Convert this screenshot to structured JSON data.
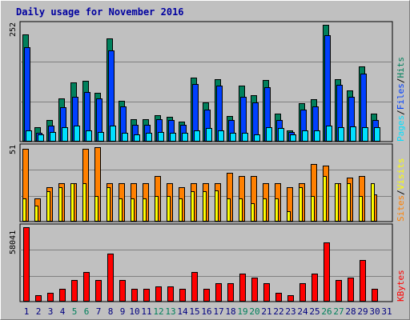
{
  "title": "Daily usage for November 2016",
  "colors": {
    "frame": "#c0c0c0",
    "panel": "#c0c0c0",
    "title": "#0000a0",
    "hits": "#00805c",
    "files": "#0040ff",
    "pages": "#00e0ff",
    "visits": "#ffff00",
    "sites": "#ff8000",
    "kbytes": "#ff0000",
    "weekend_label": "#00805c",
    "weekday_label": "#000080",
    "legend_sep": "#000000"
  },
  "chart_data": [
    {
      "type": "bar",
      "panel": "hits-files-pages",
      "ytick_label": "252",
      "legend": [
        "Pages",
        "/",
        "Files",
        "/",
        "Hits"
      ],
      "categories": [
        "1",
        "2",
        "3",
        "4",
        "5",
        "6",
        "7",
        "8",
        "9",
        "10",
        "11",
        "12",
        "13",
        "14",
        "15",
        "16",
        "17",
        "18",
        "19",
        "20",
        "21",
        "22",
        "23",
        "24",
        "25",
        "26",
        "27",
        "28",
        "29",
        "30",
        "31"
      ],
      "weekend_days": [
        "5",
        "6",
        "12",
        "13",
        "19",
        "20",
        "26",
        "27"
      ],
      "series": [
        {
          "name": "Hits",
          "values": [
            252,
            34,
            50,
            102,
            138,
            143,
            115,
            243,
            96,
            52,
            52,
            62,
            58,
            46,
            150,
            92,
            146,
            60,
            132,
            109,
            144,
            66,
            27,
            90,
            100,
            274,
            146,
            120,
            176,
            66,
            0
          ]
        },
        {
          "name": "Files",
          "values": [
            222,
            20,
            38,
            80,
            106,
            116,
            102,
            214,
            82,
            40,
            40,
            52,
            50,
            40,
            136,
            76,
            132,
            50,
            106,
            92,
            128,
            50,
            22,
            76,
            82,
            250,
            134,
            106,
            160,
            50,
            0
          ]
        },
        {
          "name": "Pages",
          "values": [
            27,
            16,
            23,
            34,
            38,
            27,
            23,
            38,
            20,
            16,
            20,
            23,
            20,
            20,
            27,
            31,
            27,
            20,
            20,
            16,
            34,
            31,
            16,
            27,
            27,
            38,
            34,
            36,
            34,
            34,
            0
          ]
        }
      ]
    },
    {
      "type": "bar",
      "panel": "visits-sites",
      "ytick_label": "51",
      "legend": [
        "Sites",
        "/",
        "Visits"
      ],
      "categories": [
        "1",
        "2",
        "3",
        "4",
        "5",
        "6",
        "7",
        "8",
        "9",
        "10",
        "11",
        "12",
        "13",
        "14",
        "15",
        "16",
        "17",
        "18",
        "19",
        "20",
        "21",
        "22",
        "23",
        "24",
        "25",
        "26",
        "27",
        "28",
        "29",
        "30",
        "31"
      ],
      "series": [
        {
          "name": "Visits",
          "values": [
            16,
            11,
            21,
            24,
            27,
            27,
            18,
            24,
            16,
            16,
            16,
            18,
            18,
            16,
            21,
            21,
            22,
            16,
            16,
            13,
            16,
            16,
            7,
            24,
            18,
            32,
            27,
            27,
            18,
            27,
            0
          ]
        },
        {
          "name": "Sites",
          "values": [
            51,
            16,
            24,
            27,
            27,
            51,
            52,
            27,
            27,
            27,
            27,
            32,
            27,
            24,
            27,
            27,
            27,
            34,
            32,
            32,
            27,
            27,
            24,
            27,
            40,
            39,
            27,
            31,
            32,
            19,
            0
          ]
        }
      ]
    },
    {
      "type": "bar",
      "panel": "kbytes",
      "ytick_label": "58041",
      "legend": [
        "KBytes"
      ],
      "categories": [
        "1",
        "2",
        "3",
        "4",
        "5",
        "6",
        "7",
        "8",
        "9",
        "10",
        "11",
        "12",
        "13",
        "14",
        "15",
        "16",
        "17",
        "18",
        "19",
        "20",
        "21",
        "22",
        "23",
        "24",
        "25",
        "26",
        "27",
        "28",
        "29",
        "30",
        "31"
      ],
      "series": [
        {
          "name": "KBytes",
          "values": [
            58041,
            4800,
            7100,
            9700,
            16700,
            23000,
            16700,
            37400,
            16700,
            9700,
            9700,
            12000,
            12000,
            9700,
            23400,
            9700,
            14400,
            14400,
            21900,
            19000,
            14400,
            7100,
            4800,
            14400,
            21900,
            46000,
            16700,
            19000,
            32400,
            9700,
            0
          ]
        }
      ]
    }
  ]
}
